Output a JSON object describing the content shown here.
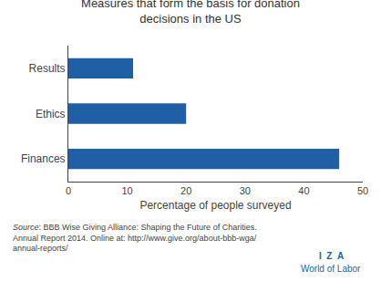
{
  "chart_data": {
    "type": "bar",
    "orientation": "horizontal",
    "title": "Measures that form the basis for donation\ndecisions in the US",
    "categories": [
      "Finances",
      "Ethics",
      "Results"
    ],
    "values": [
      46,
      20,
      11
    ],
    "color": "#1f5fa6",
    "xlabel": "Percentage of people surveyed",
    "xlim": [
      0,
      50
    ],
    "xticks": [
      0,
      10,
      20,
      30,
      40,
      50
    ],
    "grid": false,
    "annotations": [
      "Source",
      ": BBB Wise Giving Alliance: Shaping the Future of Charities.\nAnnual Report 2014. Online at: http://www.give.org/about-bbb-wga/\nannual-reports/",
      "I  Z  A",
      "World of Labor"
    ]
  }
}
